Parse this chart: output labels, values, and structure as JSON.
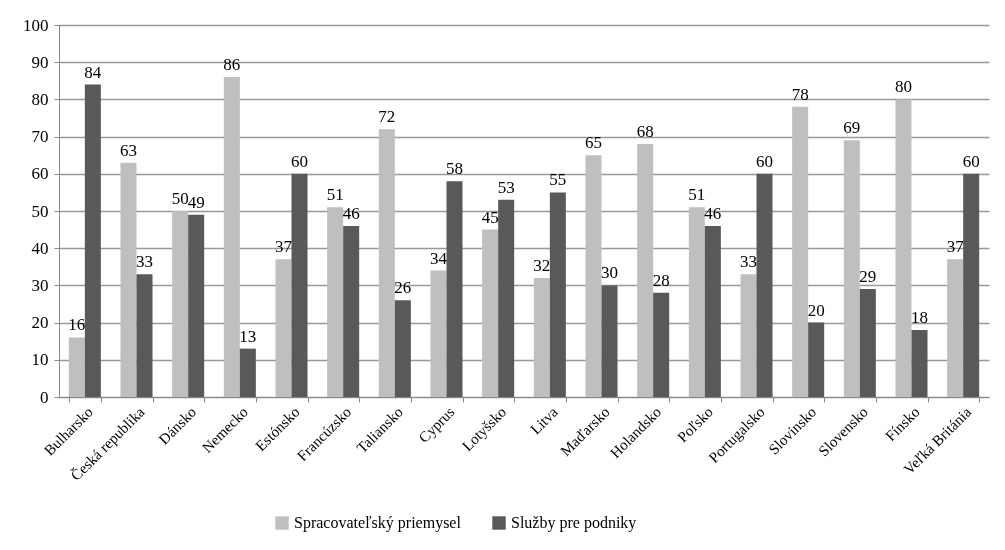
{
  "chart_data": {
    "type": "bar",
    "categories": [
      "Bulharsko",
      "Česká republika",
      "Dánsko",
      "Nemecko",
      "Estónsko",
      "Francúzsko",
      "Taliansko",
      "Cyprus",
      "Lotyšsko",
      "Litva",
      "Maďarsko",
      "Holandsko",
      "Poľsko",
      "Portugalsko",
      "Slovinsko",
      "Slovensko",
      "Fínsko",
      "Veľká Británia"
    ],
    "series": [
      {
        "name": "Spracovateľský priemysel",
        "color": "#bfbfbf",
        "values": [
          16,
          63,
          50,
          86,
          37,
          51,
          72,
          34,
          45,
          32,
          65,
          68,
          51,
          33,
          78,
          69,
          80,
          37
        ]
      },
      {
        "name": "Služby pre podniky",
        "color": "#595959",
        "values": [
          84,
          33,
          49,
          13,
          60,
          46,
          26,
          58,
          53,
          55,
          30,
          28,
          46,
          60,
          20,
          29,
          18,
          60
        ]
      }
    ],
    "ylim": [
      0,
      100
    ],
    "yticks": [
      0,
      10,
      20,
      30,
      40,
      50,
      60,
      70,
      80,
      90,
      100
    ],
    "grid": "y",
    "legend": "bottom",
    "data_labels": true
  }
}
